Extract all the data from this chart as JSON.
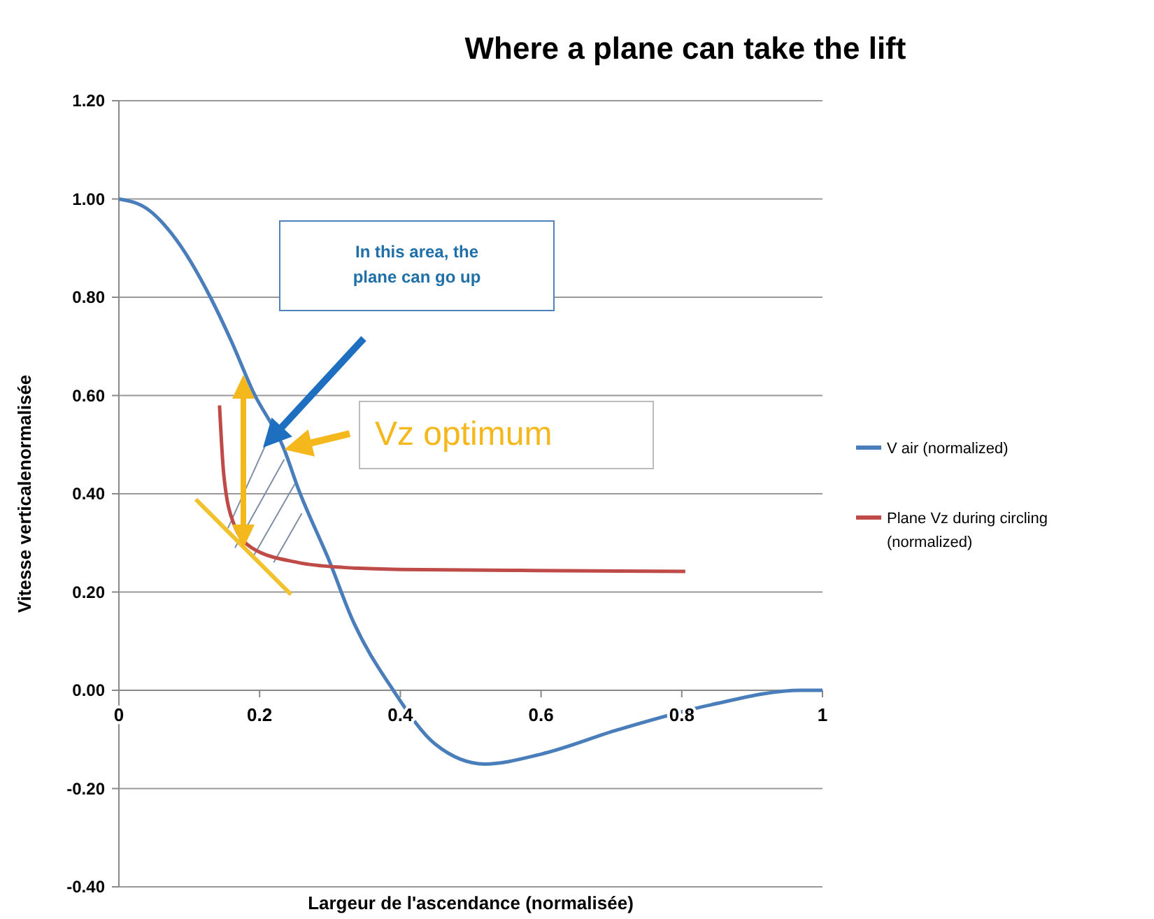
{
  "chart_data": {
    "type": "line",
    "title": "Where a plane can take the lift",
    "xlabel": "Largeur de l'ascendance (normalisée)",
    "ylabel": "Vitesse verticalenormalisée",
    "xlim": [
      0,
      1
    ],
    "xticks": [
      0,
      0.2,
      0.4,
      0.6,
      0.8,
      1
    ],
    "ylim": [
      -0.4,
      1.2
    ],
    "yticks": [
      {
        "value": -0.4,
        "label": "-0.40"
      },
      {
        "value": -0.2,
        "label": "-0.20"
      },
      {
        "value": 0,
        "label": "0.00"
      },
      {
        "value": 0.2,
        "label": "0.20"
      },
      {
        "value": 0.4,
        "label": "0.40"
      },
      {
        "value": 0.6,
        "label": "0.60"
      },
      {
        "value": 0.8,
        "label": "0.80"
      },
      {
        "value": 1,
        "label": "1.00"
      },
      {
        "value": 1.2,
        "label": "1.20"
      }
    ],
    "grid": "y",
    "legend": "right",
    "marker": "none",
    "line_style": "solid",
    "series": [
      {
        "name": "V air (normalized)",
        "color": "#4a7ebb",
        "x": [
          0,
          0.04,
          0.08,
          0.13,
          0.16,
          0.19,
          0.235,
          0.255,
          0.3,
          0.33,
          0.39,
          0.45,
          0.52,
          0.6,
          0.71,
          0.84,
          0.97,
          1
        ],
        "values": [
          1,
          0.98,
          0.92,
          0.8,
          0.71,
          0.61,
          0.49,
          0.41,
          0.26,
          0.15,
          0,
          -0.11,
          -0.15,
          -0.13,
          -0.08,
          -0.03,
          0,
          0
        ]
      },
      {
        "name": "Plane Vz during circling (normalized)",
        "color": "#be4b48",
        "x": [
          0.143,
          0.149,
          0.163,
          0.189,
          0.255,
          0.32,
          0.4,
          0.57,
          0.805
        ],
        "values": [
          0.58,
          0.44,
          0.34,
          0.29,
          0.26,
          0.25,
          0.246,
          0.244,
          0.242
        ]
      }
    ],
    "annotations": [
      "In this area, the plane can go up",
      {
        "text": "Vz optimum",
        "x": 0.235,
        "y": 0.49
      }
    ]
  }
}
